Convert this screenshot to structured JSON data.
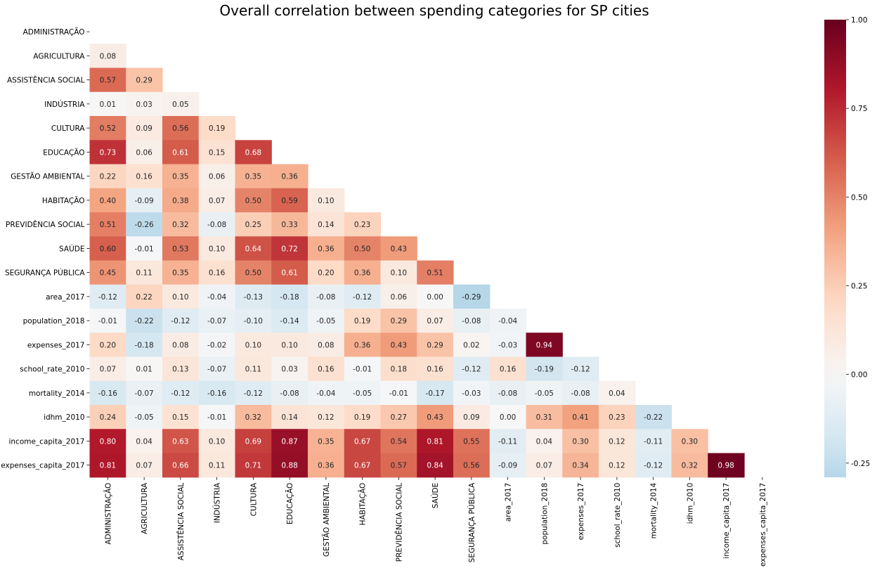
{
  "chart_data": {
    "type": "heatmap",
    "title": "Overall correlation between spending categories for SP cities",
    "labels": [
      "ADMINISTRAÇÃO",
      "AGRICULTURA",
      "ASSISTÊNCIA SOCIAL",
      "INDÚSTRIA",
      "CULTURA",
      "EDUCAÇÃO",
      "GESTÃO AMBIENTAL",
      "HABITAÇÃO",
      "PREVIDÊNCIA SOCIAL",
      "SAÚDE",
      "SEGURANÇA PÚBLICA",
      "area_2017",
      "population_2018",
      "expenses_2017",
      "school_rate_2010",
      "mortality_2014",
      "idhm_2010",
      "income_capita_2017",
      "expenses_capita_2017"
    ],
    "mask": "upper-triangle",
    "values": [
      [],
      [
        0.08
      ],
      [
        0.57,
        0.29
      ],
      [
        0.01,
        0.03,
        0.05
      ],
      [
        0.52,
        0.09,
        0.56,
        0.19
      ],
      [
        0.73,
        0.06,
        0.61,
        0.15,
        0.68
      ],
      [
        0.22,
        0.16,
        0.35,
        0.06,
        0.35,
        0.36
      ],
      [
        0.4,
        -0.09,
        0.38,
        0.07,
        0.5,
        0.59,
        0.1
      ],
      [
        0.51,
        -0.26,
        0.32,
        -0.08,
        0.25,
        0.33,
        0.14,
        0.23
      ],
      [
        0.6,
        -0.01,
        0.53,
        0.1,
        0.64,
        0.72,
        0.36,
        0.5,
        0.43
      ],
      [
        0.45,
        0.11,
        0.35,
        0.16,
        0.5,
        0.61,
        0.2,
        0.36,
        0.1,
        0.51
      ],
      [
        -0.12,
        0.22,
        0.1,
        -0.04,
        -0.13,
        -0.18,
        -0.08,
        -0.12,
        0.06,
        -0.0,
        -0.29
      ],
      [
        -0.01,
        -0.22,
        -0.12,
        -0.07,
        -0.1,
        -0.14,
        -0.05,
        0.19,
        0.29,
        0.07,
        -0.08,
        -0.04
      ],
      [
        0.2,
        -0.18,
        0.08,
        -0.02,
        0.1,
        0.1,
        0.08,
        0.36,
        0.43,
        0.29,
        0.02,
        -0.03,
        0.94
      ],
      [
        0.07,
        0.01,
        0.13,
        -0.07,
        0.11,
        0.03,
        0.16,
        -0.01,
        0.18,
        0.16,
        -0.12,
        0.16,
        -0.19,
        -0.12
      ],
      [
        -0.16,
        -0.07,
        -0.12,
        -0.16,
        -0.12,
        -0.08,
        -0.04,
        -0.05,
        -0.01,
        -0.17,
        -0.03,
        -0.08,
        -0.05,
        -0.08,
        0.04
      ],
      [
        0.24,
        -0.05,
        0.15,
        -0.01,
        0.32,
        0.14,
        0.12,
        0.19,
        0.27,
        0.43,
        0.09,
        -0.0,
        0.31,
        0.41,
        0.23,
        -0.22
      ],
      [
        0.8,
        0.04,
        0.63,
        0.1,
        0.69,
        0.87,
        0.35,
        0.67,
        0.54,
        0.81,
        0.55,
        -0.11,
        0.04,
        0.3,
        0.12,
        -0.11,
        0.3
      ],
      [
        0.81,
        0.07,
        0.66,
        0.11,
        0.71,
        0.88,
        0.36,
        0.67,
        0.57,
        0.84,
        0.56,
        -0.09,
        0.07,
        0.34,
        0.12,
        -0.12,
        0.32,
        0.98
      ]
    ],
    "colorbar": {
      "min": -0.29,
      "max": 1.0,
      "ticks": [
        "1.00",
        "0.75",
        "0.50",
        "0.25",
        "0.00",
        "-0.25"
      ],
      "tick_values": [
        1.0,
        0.75,
        0.5,
        0.25,
        0.0,
        -0.25
      ],
      "colormap": "RdBu_r"
    },
    "cell_text_format": "2 decimals"
  }
}
